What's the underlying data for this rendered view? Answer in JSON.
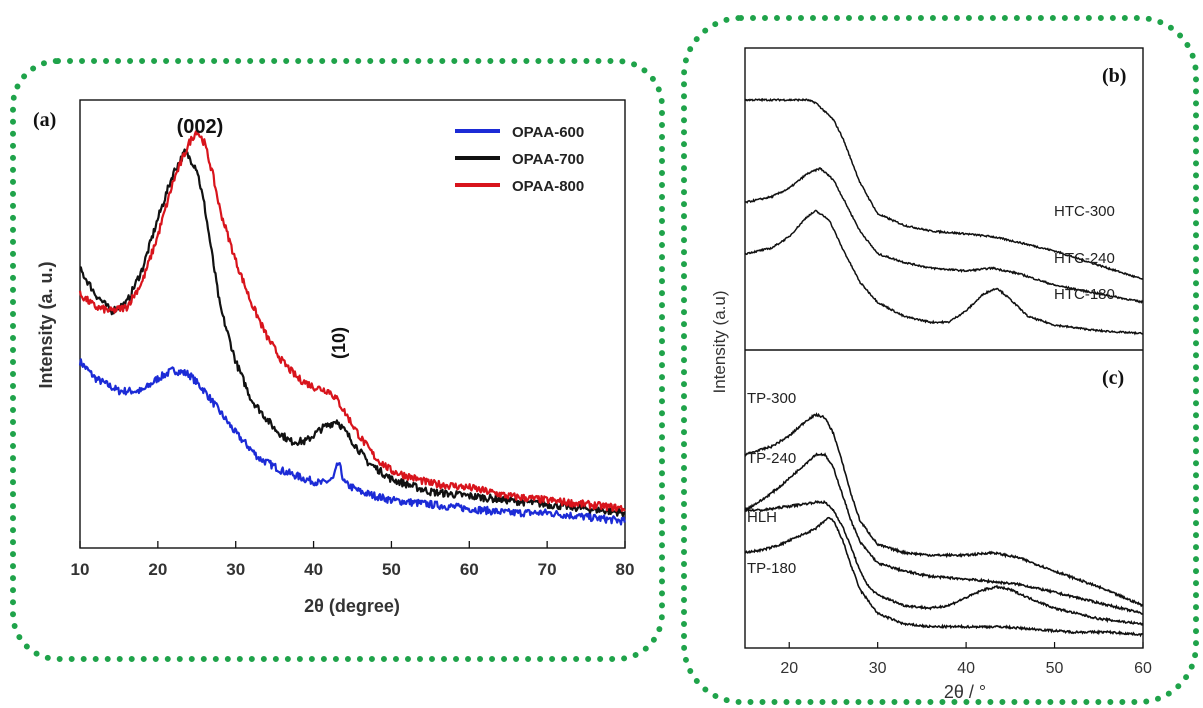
{
  "colors": {
    "frame": "#1fa34a",
    "series_600": "#1c2bd6",
    "series_700": "#111111",
    "series_800": "#d8141c",
    "ink": "#111111"
  },
  "chart_data": [
    {
      "panel": "(a)",
      "type": "line",
      "xlabel": "2θ  (degree)",
      "ylabel": "Intensity (a. u.)",
      "xlim": [
        10,
        80
      ],
      "ylim": [
        0,
        1
      ],
      "xticks": [
        10,
        20,
        30,
        40,
        50,
        60,
        70,
        80
      ],
      "legend_position": "top-right",
      "annotations": [
        {
          "text": "(002)",
          "x": 25,
          "y": 1.01
        },
        {
          "text": "(10)",
          "x": 43.5,
          "y": 0.46,
          "rotated": true
        }
      ],
      "series": [
        {
          "name": "OPAA-600",
          "color": "#1c2bd6",
          "x": [
            10,
            12,
            15,
            18,
            20,
            22,
            24,
            26,
            28,
            30,
            33,
            36,
            39,
            41,
            42.5,
            43.2,
            44,
            46,
            50,
            55,
            60,
            65,
            70,
            75,
            80
          ],
          "y": [
            0.42,
            0.38,
            0.35,
            0.35,
            0.38,
            0.4,
            0.39,
            0.35,
            0.3,
            0.25,
            0.19,
            0.16,
            0.14,
            0.13,
            0.14,
            0.18,
            0.13,
            0.11,
            0.09,
            0.08,
            0.07,
            0.06,
            0.06,
            0.05,
            0.04
          ]
        },
        {
          "name": "OPAA-700",
          "color": "#111111",
          "x": [
            10,
            12,
            14,
            16,
            18,
            20,
            22,
            23.5,
            25,
            26,
            27,
            28,
            30,
            32,
            35,
            37,
            39,
            41,
            43,
            45,
            47,
            50,
            55,
            60,
            65,
            70,
            75,
            80
          ],
          "y": [
            0.64,
            0.58,
            0.54,
            0.56,
            0.64,
            0.76,
            0.87,
            0.92,
            0.88,
            0.79,
            0.67,
            0.55,
            0.42,
            0.33,
            0.26,
            0.23,
            0.23,
            0.26,
            0.28,
            0.23,
            0.18,
            0.14,
            0.11,
            0.1,
            0.09,
            0.08,
            0.07,
            0.06
          ]
        },
        {
          "name": "OPAA-800",
          "color": "#d8141c",
          "x": [
            10,
            12,
            14,
            16,
            18,
            20,
            22,
            24,
            25,
            26,
            27,
            28,
            30,
            32,
            34,
            36,
            38,
            40,
            42,
            43,
            44,
            46,
            48,
            50,
            55,
            60,
            65,
            70,
            75,
            80
          ],
          "y": [
            0.58,
            0.55,
            0.54,
            0.55,
            0.61,
            0.72,
            0.85,
            0.94,
            0.97,
            0.94,
            0.87,
            0.78,
            0.66,
            0.56,
            0.48,
            0.42,
            0.38,
            0.36,
            0.35,
            0.33,
            0.3,
            0.24,
            0.19,
            0.16,
            0.13,
            0.12,
            0.1,
            0.09,
            0.08,
            0.07
          ]
        }
      ]
    },
    {
      "panel": "(b)",
      "type": "line",
      "xlabel": "2θ / °",
      "ylabel": "Intensity (a.u)",
      "xlim": [
        15,
        60
      ],
      "ylim": [
        0,
        1
      ],
      "xticks": [
        20,
        30,
        40,
        50,
        60
      ],
      "series": [
        {
          "name": "HTC-300",
          "x": [
            15,
            18,
            20,
            22,
            23,
            25,
            26,
            27,
            28,
            30,
            33,
            36,
            40,
            43,
            46,
            50,
            55,
            60
          ],
          "y": [
            0.86,
            0.86,
            0.86,
            0.86,
            0.85,
            0.79,
            0.73,
            0.65,
            0.57,
            0.46,
            0.42,
            0.4,
            0.39,
            0.38,
            0.36,
            0.33,
            0.28,
            0.23
          ]
        },
        {
          "name": "HTC-240",
          "x": [
            15,
            18,
            20,
            22,
            23.5,
            25,
            26,
            28,
            30,
            33,
            36,
            40,
            43,
            46,
            50,
            55,
            60
          ],
          "y": [
            0.5,
            0.52,
            0.55,
            0.6,
            0.62,
            0.58,
            0.52,
            0.4,
            0.32,
            0.29,
            0.27,
            0.26,
            0.27,
            0.25,
            0.21,
            0.18,
            0.15
          ]
        },
        {
          "name": "HTC-180",
          "x": [
            15,
            18,
            20,
            22,
            23,
            24.5,
            26,
            28,
            30,
            33,
            36,
            38,
            40,
            42,
            43.5,
            45,
            47,
            50,
            55,
            60
          ],
          "y": [
            0.32,
            0.34,
            0.38,
            0.45,
            0.47,
            0.44,
            0.34,
            0.22,
            0.15,
            0.1,
            0.08,
            0.08,
            0.12,
            0.18,
            0.2,
            0.16,
            0.1,
            0.07,
            0.05,
            0.04
          ]
        }
      ]
    },
    {
      "panel": "(c)",
      "type": "line",
      "xlabel": "2θ / °",
      "ylabel": "Intensity (a.u)",
      "xlim": [
        15,
        60
      ],
      "ylim": [
        0,
        1
      ],
      "xticks": [
        20,
        30,
        40,
        50,
        60
      ],
      "series": [
        {
          "name": "TP-300",
          "x": [
            15,
            18,
            20,
            22,
            23,
            24,
            25,
            26,
            27,
            28,
            30,
            33,
            36,
            40,
            43,
            46,
            50,
            55,
            60
          ],
          "y": [
            0.7,
            0.73,
            0.77,
            0.83,
            0.85,
            0.84,
            0.78,
            0.67,
            0.55,
            0.45,
            0.36,
            0.33,
            0.32,
            0.32,
            0.33,
            0.31,
            0.26,
            0.2,
            0.13
          ]
        },
        {
          "name": "TP-240",
          "x": [
            15,
            17,
            19,
            21,
            23,
            24,
            25,
            26,
            27,
            28,
            30,
            33,
            36,
            40,
            43,
            46,
            50,
            55,
            60
          ],
          "y": [
            0.49,
            0.53,
            0.58,
            0.64,
            0.7,
            0.7,
            0.65,
            0.55,
            0.45,
            0.37,
            0.29,
            0.26,
            0.24,
            0.23,
            0.22,
            0.21,
            0.18,
            0.14,
            0.1
          ]
        },
        {
          "name": "HLH",
          "x": [
            15,
            17,
            19,
            21,
            23,
            24,
            25,
            26,
            27,
            28,
            29,
            30,
            33,
            36,
            38,
            40,
            42,
            43.5,
            45,
            47,
            50,
            55,
            60
          ],
          "y": [
            0.49,
            0.49,
            0.5,
            0.51,
            0.52,
            0.52,
            0.49,
            0.43,
            0.35,
            0.26,
            0.2,
            0.17,
            0.13,
            0.12,
            0.13,
            0.16,
            0.19,
            0.2,
            0.19,
            0.16,
            0.12,
            0.08,
            0.06
          ]
        },
        {
          "name": "TP-180",
          "x": [
            15,
            17,
            19,
            21,
            23,
            24,
            24.5,
            25,
            26,
            27,
            28,
            30,
            33,
            36,
            40,
            44,
            48,
            52,
            56,
            60
          ],
          "y": [
            0.33,
            0.34,
            0.36,
            0.39,
            0.42,
            0.45,
            0.46,
            0.45,
            0.38,
            0.28,
            0.19,
            0.1,
            0.06,
            0.05,
            0.05,
            0.05,
            0.04,
            0.03,
            0.03,
            0.02
          ]
        }
      ]
    }
  ]
}
